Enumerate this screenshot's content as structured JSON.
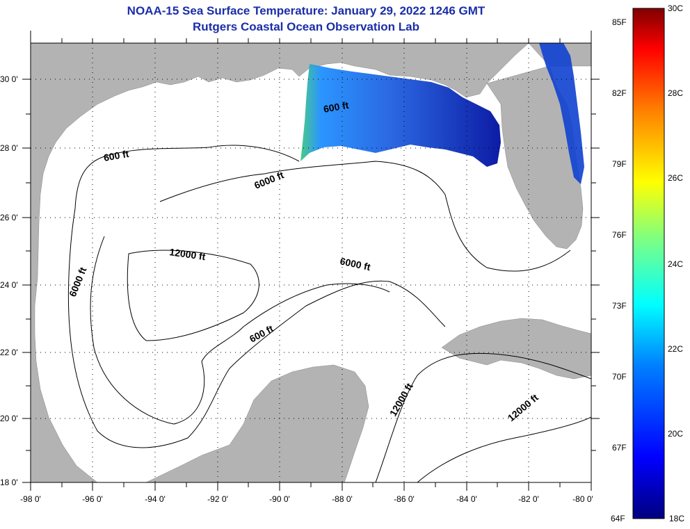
{
  "title_line1": "NOAA-15 Sea Surface Temperature:  January 29, 2022 1246 GMT",
  "title_line2": "Rutgers Coastal Ocean Observation Lab",
  "lat_labels": [
    "30 0'",
    "28 0'",
    "26 0'",
    "24 0'",
    "22 0'",
    "20 0'",
    "18 0'"
  ],
  "lon_labels": [
    "-98 0'",
    "-96 0'",
    "-94 0'",
    "-92 0'",
    "-90 0'",
    "-88 0'",
    "-86 0'",
    "-84 0'",
    "-82 0'",
    "-80 0'"
  ],
  "contour_labels": [
    "600 ft",
    "600 ft",
    "6000 ft",
    "12000 ft",
    "6000 ft",
    "6000 ft",
    "600 ft",
    "12000 ft",
    "12000 ft"
  ],
  "colorbar": {
    "fahrenheit": [
      "85F",
      "82F",
      "79F",
      "76F",
      "73F",
      "70F",
      "67F",
      "64F"
    ],
    "celsius": [
      "30C",
      "28C",
      "26C",
      "24C",
      "22C",
      "20C",
      "18C"
    ]
  },
  "colors": {
    "title": "#1a2ea8",
    "land": "#b3b3b3",
    "ocean": "#ffffff"
  }
}
